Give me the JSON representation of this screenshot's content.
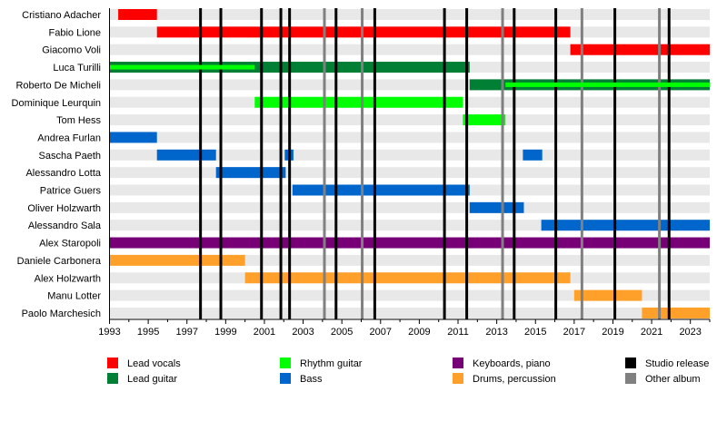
{
  "chart_data": {
    "type": "timeline",
    "xlim": [
      1993,
      2024
    ],
    "x_ticks": [
      1993,
      1995,
      1997,
      1999,
      2001,
      2003,
      2005,
      2007,
      2009,
      2011,
      2013,
      2015,
      2017,
      2019,
      2021,
      2023
    ],
    "roles": {
      "lead_vocals": {
        "label": "Lead vocals",
        "color": "#ff0000"
      },
      "lead_guitar": {
        "label": "Lead guitar",
        "color": "#007f35"
      },
      "rhythm_guitar": {
        "label": "Rhythm guitar",
        "color": "#00ff00"
      },
      "bass": {
        "label": "Bass",
        "color": "#0066cc"
      },
      "keyboards": {
        "label": "Keyboards, piano",
        "color": "#770077"
      },
      "drums": {
        "label": "Drums, percussion",
        "color": "#ffa02a"
      },
      "studio": {
        "label": "Studio release",
        "color": "#000000"
      },
      "other": {
        "label": "Other album",
        "color": "#808080"
      }
    },
    "members": [
      {
        "name": "Cristiano Adacher",
        "bars": [
          {
            "role": "lead_vocals",
            "start": 1993.45,
            "end": 1995.45
          }
        ]
      },
      {
        "name": "Fabio Lione",
        "bars": [
          {
            "role": "lead_vocals",
            "start": 1995.45,
            "end": 2016.8
          }
        ]
      },
      {
        "name": "Giacomo Voli",
        "bars": [
          {
            "role": "lead_vocals",
            "start": 2016.8,
            "end": 2024
          }
        ]
      },
      {
        "name": "Luca Turilli",
        "bars": [
          {
            "role": "lead_guitar",
            "start": 1993,
            "end": 2011.6
          },
          {
            "role": "lead_vocals",
            "start": 1993,
            "end": 1993.45,
            "thin": true
          },
          {
            "role": "rhythm_guitar",
            "start": 1993,
            "end": 2000.5,
            "thin": true
          }
        ]
      },
      {
        "name": "Roberto De Micheli",
        "bars": [
          {
            "role": "lead_guitar",
            "start": 2011.6,
            "end": 2024
          },
          {
            "role": "rhythm_guitar",
            "start": 2013.45,
            "end": 2024,
            "thin": true
          }
        ]
      },
      {
        "name": "Dominique Leurquin",
        "bars": [
          {
            "role": "rhythm_guitar",
            "start": 2000.5,
            "end": 2011.25
          }
        ]
      },
      {
        "name": "Tom Hess",
        "bars": [
          {
            "role": "rhythm_guitar",
            "start": 2011.25,
            "end": 2013.45
          }
        ]
      },
      {
        "name": "Andrea Furlan",
        "bars": [
          {
            "role": "bass",
            "start": 1993,
            "end": 1995.45
          }
        ]
      },
      {
        "name": "Sascha Paeth",
        "bars": [
          {
            "role": "bass",
            "start": 1995.45,
            "end": 1998.5
          },
          {
            "role": "bass",
            "start": 2002.05,
            "end": 2002.5
          },
          {
            "role": "bass",
            "start": 2014.35,
            "end": 2015.35
          }
        ]
      },
      {
        "name": "Alessandro Lotta",
        "bars": [
          {
            "role": "bass",
            "start": 1998.5,
            "end": 2002.1
          }
        ]
      },
      {
        "name": "Patrice Guers",
        "bars": [
          {
            "role": "bass",
            "start": 2002.45,
            "end": 2011.6
          }
        ]
      },
      {
        "name": "Oliver Holzwarth",
        "bars": [
          {
            "role": "bass",
            "start": 2011.6,
            "end": 2014.4
          }
        ]
      },
      {
        "name": "Alessandro Sala",
        "bars": [
          {
            "role": "bass",
            "start": 2015.3,
            "end": 2024
          }
        ]
      },
      {
        "name": "Alex Staropoli",
        "bars": [
          {
            "role": "keyboards",
            "start": 1993,
            "end": 2024
          }
        ]
      },
      {
        "name": "Daniele Carbonera",
        "bars": [
          {
            "role": "drums",
            "start": 1993,
            "end": 2000
          }
        ]
      },
      {
        "name": "Alex Holzwarth",
        "bars": [
          {
            "role": "drums",
            "start": 2000,
            "end": 2016.8
          }
        ]
      },
      {
        "name": "Manu Lotter",
        "bars": [
          {
            "role": "drums",
            "start": 2017,
            "end": 2020.5
          }
        ]
      },
      {
        "name": "Paolo Marchesich",
        "bars": [
          {
            "role": "drums",
            "start": 2020.5,
            "end": 2024
          }
        ]
      }
    ],
    "studio_releases": [
      1997.7,
      1998.75,
      2000.85,
      2001.85,
      2002.3,
      2004.7,
      2006.7,
      2010.3,
      2011.45,
      2013.9,
      2016.05,
      2019.1,
      2021.9
    ],
    "other_albums": [
      2004.1,
      2006.05,
      2013.3,
      2017.4,
      2021.4
    ],
    "legend": [
      "lead_vocals",
      "rhythm_guitar",
      "keyboards",
      "studio",
      "lead_guitar",
      "bass",
      "drums",
      "other"
    ],
    "grid": false
  }
}
